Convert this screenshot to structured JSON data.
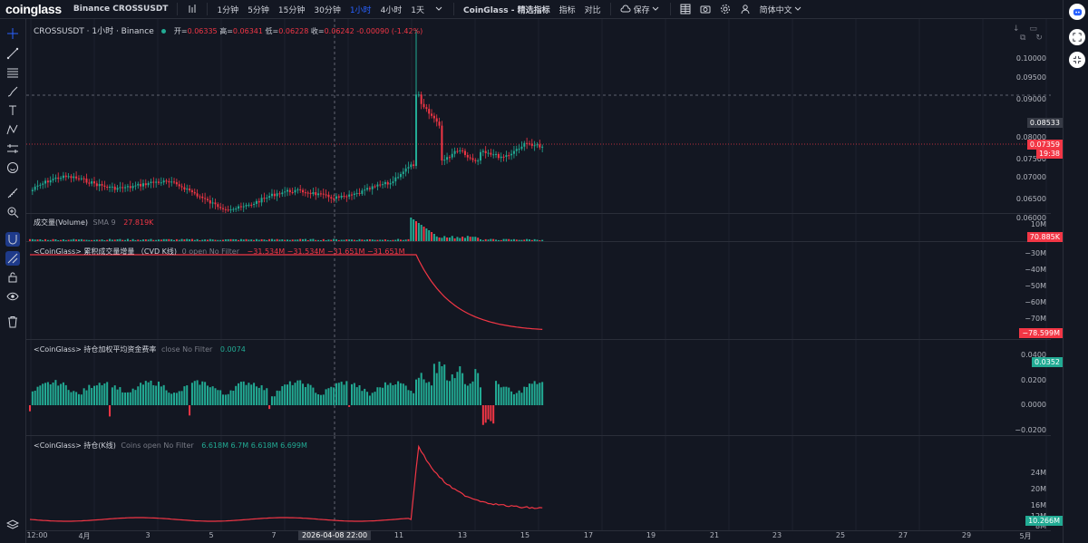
{
  "topbar": {
    "logo": "coinglass",
    "symbol": "Binance CROSSUSDT",
    "intervals": [
      "1分钟",
      "5分钟",
      "15分钟",
      "30分钟",
      "1小时",
      "4小时",
      "1天"
    ],
    "active_interval": "1小时",
    "indicators_label": "CoinGlass - 精选指标",
    "indicator_label": "指标",
    "compare_label": "对比",
    "save_label": "保存",
    "language_label": "简体中文"
  },
  "main": {
    "title": "CROSSUSDT · 1小时 · Binance",
    "open_label": "开=",
    "open": "0.06335",
    "high_label": "高=",
    "high": "0.06341",
    "low_label": "低=",
    "low": "0.06228",
    "close_label": "收=",
    "close": "0.06242",
    "change": "-0.00090 (-1.42%)",
    "y_ticks": [
      "0.10000",
      "0.09500",
      "0.09000",
      "0.08000",
      "0.07500",
      "0.07000",
      "0.06500",
      "0.06000"
    ],
    "crosshair_price": "0.08533",
    "last_price": "0.07359",
    "countdown": "19:38"
  },
  "volume": {
    "title": "成交量(Volume)",
    "sma": "SMA 9",
    "value": "27.819K",
    "y_tick": "10M",
    "badge": "70.885K"
  },
  "cvd": {
    "title": "<CoinGlass> 累积成交量增量 （CVD K线)",
    "params": "0 open No Filter",
    "values": "−31.534M −31.534M −31.651M −31.651M",
    "y_ticks": [
      "−30M",
      "−40M",
      "−50M",
      "−60M",
      "−70M"
    ],
    "badge": "−78.599M"
  },
  "funding": {
    "title": "<CoinGlass> 持仓加权平均资金费率",
    "params": "close No Filter",
    "value": "0.0074",
    "y_ticks": [
      "0.0400",
      "0.0200",
      "0.0000",
      "−0.0200"
    ],
    "badge": "0.0352"
  },
  "oi": {
    "title": "<CoinGlass> 持仓(K线)",
    "params": "Coins open No Filter",
    "values": "6.618M 6.7M 6.618M 6.699M",
    "y_ticks": [
      "24M",
      "20M",
      "16M",
      "12M",
      "8M"
    ],
    "badge": "10.266M"
  },
  "xaxis": {
    "labels": [
      "12:00",
      "4月",
      "3",
      "5",
      "7",
      "11",
      "13",
      "15",
      "17",
      "19",
      "21",
      "23",
      "25",
      "27",
      "29",
      "5月"
    ],
    "crosshair_label": "2026-04-08  22:00"
  },
  "colors": {
    "up": "#22ab94",
    "down": "#f23645",
    "bg": "#131722",
    "accent": "#2962ff"
  },
  "icons": {
    "left": [
      "crosshair-icon",
      "trendline-icon",
      "fib-icon",
      "brush-icon",
      "text-icon",
      "pattern-icon",
      "forecast-icon",
      "emoji-icon",
      "ruler-icon",
      "zoom-icon",
      "magnet-icon",
      "lock-drawing-icon",
      "lock-icon",
      "eye-icon",
      "trash-icon",
      "layers-icon"
    ]
  }
}
